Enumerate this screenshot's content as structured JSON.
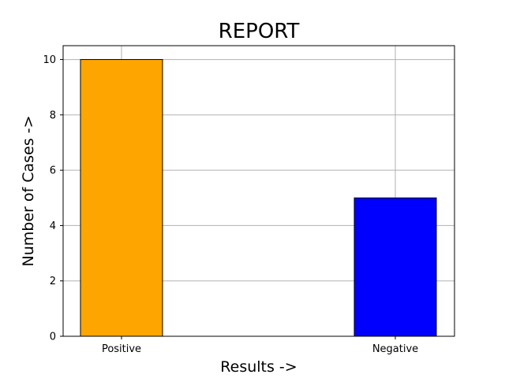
{
  "chart_data": {
    "type": "bar",
    "title": "REPORT",
    "xlabel": "Results ->",
    "ylabel": "Number of Cases ->",
    "categories": [
      "Positive",
      "Negative"
    ],
    "values": [
      10,
      5
    ],
    "bar_colors": [
      "#ffa500",
      "#0000ff"
    ],
    "bar_edge_color": "#000000",
    "ylim": [
      0,
      10.5
    ],
    "yticks": [
      0,
      2,
      4,
      6,
      8,
      10
    ],
    "grid": true,
    "grid_color": "#b0b0b0"
  }
}
